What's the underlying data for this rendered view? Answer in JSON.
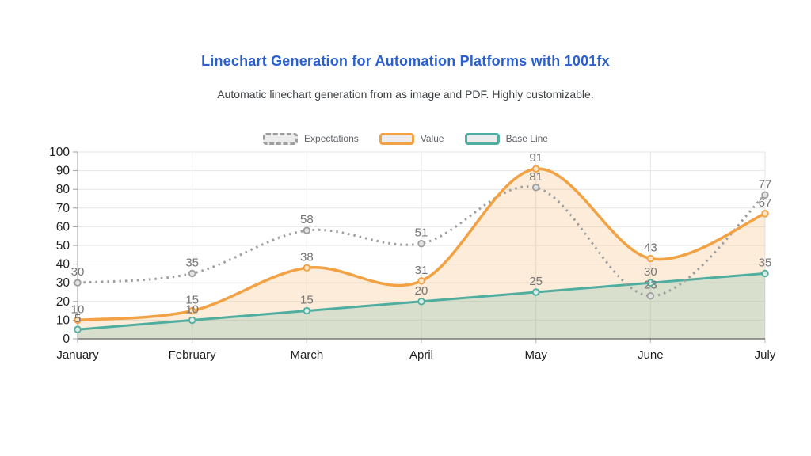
{
  "page": {
    "background": "#ffffff"
  },
  "chart_data": {
    "type": "line",
    "title": "Linechart Generation for Automation Platforms with 1001fx",
    "title_color": "#2a5fd0",
    "subtitle": "Automatic linechart generation from as image and PDF. Highly customizable.",
    "subtitle_color": "#3c4043",
    "categories": [
      "January",
      "February",
      "March",
      "April",
      "May",
      "June",
      "July"
    ],
    "series": [
      {
        "name": "Expectations",
        "values": [
          30,
          35,
          58,
          51,
          81,
          23,
          77
        ],
        "color": "#9e9e9e",
        "line_style": "dotted",
        "area": false,
        "marker_fill": "#e3e3e3"
      },
      {
        "name": "Value",
        "values": [
          10,
          15,
          38,
          31,
          91,
          43,
          67
        ],
        "color": "#f2a143",
        "line_style": "solid",
        "area": true,
        "marker_fill": "#fde4c4"
      },
      {
        "name": "Base Line",
        "values": [
          5,
          10,
          15,
          20,
          25,
          30,
          35
        ],
        "color": "#4fae9f",
        "line_style": "solid",
        "area": true,
        "marker_fill": "#d8ece7"
      }
    ],
    "ylim": [
      0,
      100
    ],
    "yticks": [
      0,
      10,
      20,
      30,
      40,
      50,
      60,
      70,
      80,
      90,
      100
    ],
    "grid": true,
    "legend_position": "top",
    "point_labels_visible": true,
    "label_color": "#757575",
    "axis_text_color": "#1f1f1f",
    "grid_color": "#e6e6e6",
    "axis_line_color": "#9e9e9e",
    "baseline_color": "#616161",
    "area_opacity": 0.2
  }
}
